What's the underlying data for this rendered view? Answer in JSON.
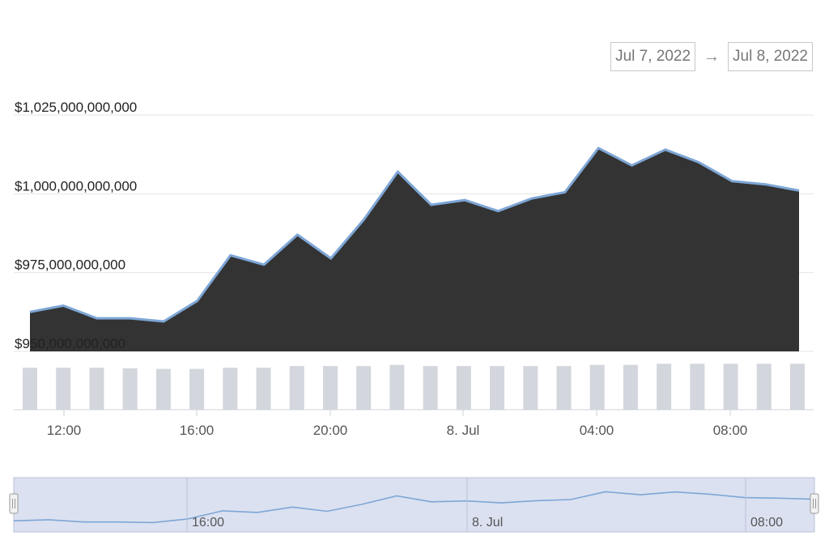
{
  "range": {
    "from": "Jul 7, 2022",
    "arrow": "→",
    "to": "Jul 8, 2022"
  },
  "colors": {
    "area": "#333333",
    "line": "#7ea6d6",
    "volume": "#d3d6dc",
    "navigator_bg": "#dbe1f0",
    "grid": "#e6e6e6"
  },
  "chart_data": {
    "type": "area",
    "y_ticks": [
      "$950,000,000,000",
      "$975,000,000,000",
      "$1,000,000,000,000",
      "$1,025,000,000,000"
    ],
    "ylim": [
      950000000000,
      1025000000000
    ],
    "x_ticks": [
      "12:00",
      "16:00",
      "20:00",
      "8. Jul",
      "04:00",
      "08:00"
    ],
    "x": [
      "11:00",
      "12:00",
      "13:00",
      "14:00",
      "15:00",
      "16:00",
      "17:00",
      "18:00",
      "19:00",
      "20:00",
      "21:00",
      "22:00",
      "23:00",
      "00:00",
      "01:00",
      "02:00",
      "03:00",
      "04:00",
      "05:00",
      "06:00",
      "07:00",
      "08:00",
      "09:00",
      "10:00"
    ],
    "series": [
      {
        "values": [
          962500000000,
          964500000000,
          960500000000,
          960500000000,
          959500000000,
          966000000000,
          980500000000,
          977500000000,
          987000000000,
          979500000000,
          992000000000,
          1007000000000,
          996500000000,
          998000000000,
          994500000000,
          998500000000,
          1000500000000,
          1014500000000,
          1009000000000,
          1014000000000,
          1010000000000,
          1004000000000,
          1003000000000,
          1001000000000
        ]
      }
    ],
    "volume": [
      0.74,
      0.74,
      0.74,
      0.73,
      0.72,
      0.72,
      0.74,
      0.74,
      0.77,
      0.77,
      0.77,
      0.79,
      0.77,
      0.77,
      0.77,
      0.77,
      0.77,
      0.79,
      0.79,
      0.81,
      0.81,
      0.81,
      0.81,
      0.81
    ],
    "navigator_ticks": [
      "16:00",
      "8. Jul",
      "08:00"
    ]
  }
}
